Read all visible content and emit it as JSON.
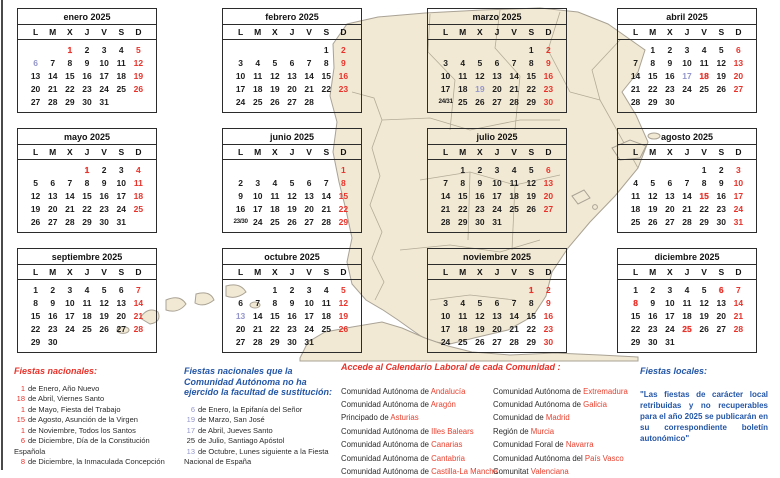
{
  "weekday_headers": [
    "L",
    "M",
    "X",
    "J",
    "V",
    "S",
    "D"
  ],
  "months": [
    {
      "title": "enero 2025",
      "weeks": [
        [
          "",
          "",
          "1:h",
          "2",
          "3",
          "4",
          "5:s"
        ],
        [
          "6:b",
          "7",
          "8",
          "9",
          "10",
          "11",
          "12:s"
        ],
        [
          "13",
          "14",
          "15",
          "16",
          "17",
          "18",
          "19:s"
        ],
        [
          "20",
          "21",
          "22",
          "23",
          "24",
          "25",
          "26:s"
        ],
        [
          "27",
          "28",
          "29",
          "30",
          "31",
          "",
          ""
        ]
      ]
    },
    {
      "title": "febrero 2025",
      "weeks": [
        [
          "",
          "",
          "",
          "",
          "",
          "1",
          "2:s"
        ],
        [
          "3",
          "4",
          "5",
          "6",
          "7",
          "8",
          "9:s"
        ],
        [
          "10",
          "11",
          "12",
          "13",
          "14",
          "15",
          "16:s"
        ],
        [
          "17",
          "18",
          "19",
          "20",
          "21",
          "22",
          "23:s"
        ],
        [
          "24",
          "25",
          "26",
          "27",
          "28",
          "",
          ""
        ]
      ]
    },
    {
      "title": "marzo 2025",
      "weeks": [
        [
          "",
          "",
          "",
          "",
          "",
          "1",
          "2:s"
        ],
        [
          "3",
          "4",
          "5",
          "6",
          "7",
          "8",
          "9:s"
        ],
        [
          "10",
          "11",
          "12",
          "13",
          "14",
          "15",
          "16:s"
        ],
        [
          "17",
          "18",
          "19:b",
          "20",
          "21",
          "22",
          "23:s"
        ],
        [
          "24/31:m",
          "25",
          "26",
          "27",
          "28",
          "29",
          "30:s"
        ]
      ]
    },
    {
      "title": "abril 2025",
      "weeks": [
        [
          "",
          "1",
          "2",
          "3",
          "4",
          "5",
          "6:s"
        ],
        [
          "7",
          "8",
          "9",
          "10",
          "11",
          "12",
          "13:s"
        ],
        [
          "14",
          "15",
          "16",
          "17:b",
          "18:h",
          "19",
          "20:s"
        ],
        [
          "21",
          "22",
          "23",
          "24",
          "25",
          "26",
          "27:s"
        ],
        [
          "28",
          "29",
          "30",
          "",
          "",
          "",
          ""
        ]
      ]
    },
    {
      "title": "mayo 2025",
      "weeks": [
        [
          "",
          "",
          "",
          "1:h",
          "2",
          "3",
          "4:s"
        ],
        [
          "5",
          "6",
          "7",
          "8",
          "9",
          "10",
          "11:s"
        ],
        [
          "12",
          "13",
          "14",
          "15",
          "16",
          "17",
          "18:s"
        ],
        [
          "19",
          "20",
          "21",
          "22",
          "23",
          "24",
          "25:s"
        ],
        [
          "26",
          "27",
          "28",
          "29",
          "30",
          "31",
          ""
        ]
      ]
    },
    {
      "title": "junio 2025",
      "weeks": [
        [
          "",
          "",
          "",
          "",
          "",
          "",
          "1:s"
        ],
        [
          "2",
          "3",
          "4",
          "5",
          "6",
          "7",
          "8:s"
        ],
        [
          "9",
          "10",
          "11",
          "12",
          "13",
          "14",
          "15:s"
        ],
        [
          "16",
          "17",
          "18",
          "19",
          "20",
          "21",
          "22:s"
        ],
        [
          "23/30:m",
          "24",
          "25",
          "26",
          "27",
          "28",
          "29:s"
        ]
      ]
    },
    {
      "title": "julio 2025",
      "weeks": [
        [
          "",
          "1",
          "2",
          "3",
          "4",
          "5",
          "6:s"
        ],
        [
          "7",
          "8",
          "9",
          "10",
          "11",
          "12",
          "13:s"
        ],
        [
          "14",
          "15",
          "16",
          "17",
          "18",
          "19",
          "20:s"
        ],
        [
          "21",
          "22",
          "23",
          "24",
          "25",
          "26",
          "27:s"
        ],
        [
          "28",
          "29",
          "30",
          "31",
          "",
          "",
          ""
        ]
      ]
    },
    {
      "title": "agosto 2025",
      "weeks": [
        [
          "",
          "",
          "",
          "",
          "1",
          "2",
          "3:s"
        ],
        [
          "4",
          "5",
          "6",
          "7",
          "8",
          "9",
          "10:s"
        ],
        [
          "11",
          "12",
          "13",
          "14",
          "15:h",
          "16",
          "17:s"
        ],
        [
          "18",
          "19",
          "20",
          "21",
          "22",
          "23",
          "24:s"
        ],
        [
          "25",
          "26",
          "27",
          "28",
          "29",
          "30",
          "31:s"
        ]
      ]
    },
    {
      "title": "septiembre 2025",
      "weeks": [
        [
          "1",
          "2",
          "3",
          "4",
          "5",
          "6",
          "7:s"
        ],
        [
          "8",
          "9",
          "10",
          "11",
          "12",
          "13",
          "14:s"
        ],
        [
          "15",
          "16",
          "17",
          "18",
          "19",
          "20",
          "21:s"
        ],
        [
          "22",
          "23",
          "24",
          "25",
          "26",
          "27",
          "28:s"
        ],
        [
          "29",
          "30",
          "",
          "",
          "",
          "",
          ""
        ]
      ]
    },
    {
      "title": "octubre 2025",
      "weeks": [
        [
          "",
          "",
          "1",
          "2",
          "3",
          "4",
          "5:s"
        ],
        [
          "6",
          "7",
          "8",
          "9",
          "10",
          "11",
          "12:s"
        ],
        [
          "13:b",
          "14",
          "15",
          "16",
          "17",
          "18",
          "19:s"
        ],
        [
          "20",
          "21",
          "22",
          "23",
          "24",
          "25",
          "26:s"
        ],
        [
          "27",
          "28",
          "29",
          "30",
          "31",
          "",
          ""
        ]
      ]
    },
    {
      "title": "noviembre 2025",
      "weeks": [
        [
          "",
          "",
          "",
          "",
          "",
          "1:h",
          "2:s"
        ],
        [
          "3",
          "4",
          "5",
          "6",
          "7",
          "8",
          "9:s"
        ],
        [
          "10",
          "11",
          "12",
          "13",
          "14",
          "15",
          "16:s"
        ],
        [
          "17",
          "18",
          "19",
          "20",
          "21",
          "22",
          "23:s"
        ],
        [
          "24",
          "25",
          "26",
          "27",
          "28",
          "29",
          "30:s"
        ]
      ]
    },
    {
      "title": "diciembre 2025",
      "weeks": [
        [
          "1",
          "2",
          "3",
          "4",
          "5",
          "6:h",
          "7:s"
        ],
        [
          "8:h",
          "9",
          "10",
          "11",
          "12",
          "13",
          "14:s"
        ],
        [
          "15",
          "16",
          "17",
          "18",
          "19",
          "20",
          "21:s"
        ],
        [
          "22",
          "23",
          "24",
          "25:h",
          "26",
          "27",
          "28:s"
        ],
        [
          "29",
          "30",
          "31",
          "",
          "",
          "",
          ""
        ]
      ]
    }
  ],
  "sections": {
    "nacionales": {
      "title": "Fiestas nacionales:",
      "items": [
        {
          "day": "1",
          "text": "de Enero, Año Nuevo",
          "day_color": "red"
        },
        {
          "day": "18",
          "text": "de Abril, Viernes Santo",
          "day_color": "red"
        },
        {
          "day": "1",
          "text": "de Mayo, Fiesta del Trabajo",
          "day_color": "red"
        },
        {
          "day": "15",
          "text": "de Agosto, Asunción de la Virgen",
          "day_color": "red"
        },
        {
          "day": "1",
          "text": "de Noviembre, Todos los Santos",
          "day_color": "red"
        },
        {
          "day": "6",
          "text": "de Diciembre, Día de la Constitución Española",
          "day_color": "red"
        },
        {
          "day": "8",
          "text": "de Diciembre, la Inmaculada Concepción",
          "day_color": "red"
        }
      ]
    },
    "sustitucion": {
      "title": "Fiestas nacionales que la Comunidad Autónoma no ha ejercido la facultad de sustitución:",
      "items": [
        {
          "day": "6",
          "text": "de Enero, la Epifanía del Señor",
          "day_color": "blue"
        },
        {
          "day": "19",
          "text": "de Marzo, San José",
          "day_color": "blue"
        },
        {
          "day": "17",
          "text": "de Abril, Jueves Santo",
          "day_color": "blue"
        },
        {
          "day": "25",
          "text": "de Julio, Santiago Apóstol",
          "day_color": "dark"
        },
        {
          "day": "13",
          "text": "de Octubre, Lunes siguiente a la Fiesta Nacional de España",
          "day_color": "blue"
        }
      ]
    },
    "accede": {
      "title": "Accede al Calendario Laboral de cada Comunidad :",
      "col1": [
        {
          "prefix": "Comunidad Autónoma de ",
          "region": "Andalucía"
        },
        {
          "prefix": "Comunidad Autónoma de ",
          "region": "Aragón"
        },
        {
          "prefix": "Principado de ",
          "region": "Asturias"
        },
        {
          "prefix": "Comunidad Autónoma de ",
          "region": "Illes Balears"
        },
        {
          "prefix": "Comunidad Autónoma de ",
          "region": "Canarias"
        },
        {
          "prefix": "Comunidad Autónoma de ",
          "region": "Cantabria"
        },
        {
          "prefix": "Comunidad Autónoma de ",
          "region": "Castilla-La Mancha"
        }
      ],
      "col2": [
        {
          "prefix": "Comunidad Autónoma de ",
          "region": "Extremadura"
        },
        {
          "prefix": "Comunidad Autónoma de ",
          "region": "Galicia"
        },
        {
          "prefix": "Comunidad de ",
          "region": "Madrid"
        },
        {
          "prefix": "Región de ",
          "region": "Murcia"
        },
        {
          "prefix": "Comunidad Foral de ",
          "region": "Navarra"
        },
        {
          "prefix": "Comunidad Autónoma del ",
          "region": "País Vasco"
        },
        {
          "prefix": "Comunitat ",
          "region": "Valenciana"
        }
      ]
    },
    "locales": {
      "title": "Fiestas locales:",
      "body": "\"Las fiestas de carácter local retribuidas y no recuperables para el año 2025 se publicarán en su correspondiente boletín autonómico\""
    }
  },
  "colors": {
    "holiday_red": "#e8322a",
    "substitution_blue": "#9496cb",
    "heading_blue": "#2456a6",
    "link_red": "#e8412f",
    "map_fill": "#f2e9d4"
  }
}
